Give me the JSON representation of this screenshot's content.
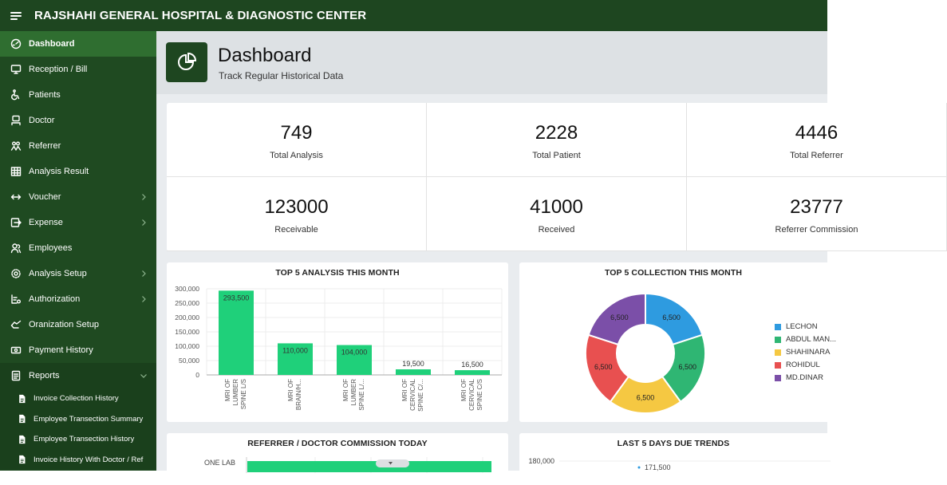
{
  "app": {
    "title": "RAJSHAHI GENERAL HOSPITAL & DIAGNOSTIC CENTER"
  },
  "sidebar": {
    "items": [
      {
        "label": "Dashboard",
        "icon": "dashboard-gauge-icon",
        "active": true
      },
      {
        "label": "Reception / Bill",
        "icon": "monitor-icon"
      },
      {
        "label": "Patients",
        "icon": "wheelchair-icon"
      },
      {
        "label": "Doctor",
        "icon": "doctor-icon"
      },
      {
        "label": "Referrer",
        "icon": "users-icon"
      },
      {
        "label": "Analysis Result",
        "icon": "grid-table-icon"
      },
      {
        "label": "Voucher",
        "icon": "arrows-left-right-icon",
        "chevron": true
      },
      {
        "label": "Expense",
        "icon": "exit-arrow-icon",
        "chevron": true
      },
      {
        "label": "Employees",
        "icon": "user-group-icon"
      },
      {
        "label": "Analysis Setup",
        "icon": "gear-icon",
        "chevron": true
      },
      {
        "label": "Authorization",
        "icon": "key-list-icon",
        "chevron": true
      },
      {
        "label": "Oranization Setup",
        "icon": "hand-icon"
      },
      {
        "label": "Payment History",
        "icon": "money-icon"
      },
      {
        "label": "Reports",
        "icon": "report-icon",
        "chevron_down": true
      }
    ],
    "sub_items": [
      {
        "label": "Invoice Collection History"
      },
      {
        "label": "Employee Transection Summary"
      },
      {
        "label": "Employee Transection History"
      },
      {
        "label": "Invoice History With Doctor / Ref"
      }
    ]
  },
  "header": {
    "title": "Dashboard",
    "subtitle": "Track Regular Historical Data",
    "icon": "pie-chart-icon"
  },
  "stats": [
    {
      "value": "749",
      "label": "Total Analysis"
    },
    {
      "value": "2228",
      "label": "Total Patient"
    },
    {
      "value": "4446",
      "label": "Total Referrer"
    },
    {
      "value": "123000",
      "label": "Receivable"
    },
    {
      "value": "41000",
      "label": "Received"
    },
    {
      "value": "23777",
      "label": "Referrer Commission"
    }
  ],
  "panels": {
    "top_analysis": "TOP 5 ANALYSIS THIS MONTH",
    "top_collection": "TOP 5 COLLECTION THIS MONTH",
    "referrer_commission": "REFERRER / DOCTOR COMMISSION TODAY",
    "due_trends": "LAST 5 DAYS DUE TRENDS"
  },
  "chart_data": [
    {
      "type": "bar",
      "title": "TOP 5 ANALYSIS THIS MONTH",
      "categories": [
        [
          "MRI OF",
          "LUMBER",
          "SPINE L/S"
        ],
        [
          "MRI OF",
          "BRAIN/H..."
        ],
        [
          "MRI OF",
          "LUMBER",
          "SPINE L/..."
        ],
        [
          "MRI OF",
          "CERVICAL",
          "SPINE C/..."
        ],
        [
          "MRI OF",
          "CERVICAL",
          "SPINE C/S"
        ]
      ],
      "values": [
        293500,
        110000,
        104000,
        19500,
        16500
      ],
      "data_labels": [
        "293,500",
        "110,000",
        "104,000",
        "19,500",
        "16,500"
      ],
      "yticks": [
        "0",
        "50,000",
        "100,000",
        "150,000",
        "200,000",
        "250,000",
        "300,000"
      ],
      "ylim": [
        0,
        300000
      ],
      "color": "#1fd07a",
      "grid": true
    },
    {
      "type": "pie",
      "title": "TOP 5 COLLECTION THIS MONTH",
      "donut": true,
      "labels": [
        "LECHON",
        "ABDUL MAN...",
        "SHAHINARA",
        "ROHIDUL",
        "MD.DINAR"
      ],
      "values": [
        6500,
        6500,
        6500,
        6500,
        6500
      ],
      "data_labels": [
        "6,500",
        "6,500",
        "6,500",
        "6,500",
        "6,500"
      ],
      "colors": [
        "#2e9be0",
        "#2fb673",
        "#f5c842",
        "#e85050",
        "#7b4fa8"
      ],
      "legend": "right"
    },
    {
      "type": "bar",
      "title": "REFERRER / DOCTOR COMMISSION TODAY",
      "orientation": "horizontal",
      "categories": [
        "ONE LAB"
      ],
      "color": "#1fd07a"
    },
    {
      "type": "line",
      "title": "LAST 5 DAYS DUE TRENDS",
      "yticks": [
        "180,000"
      ],
      "data_labels": [
        "171,500"
      ]
    }
  ]
}
